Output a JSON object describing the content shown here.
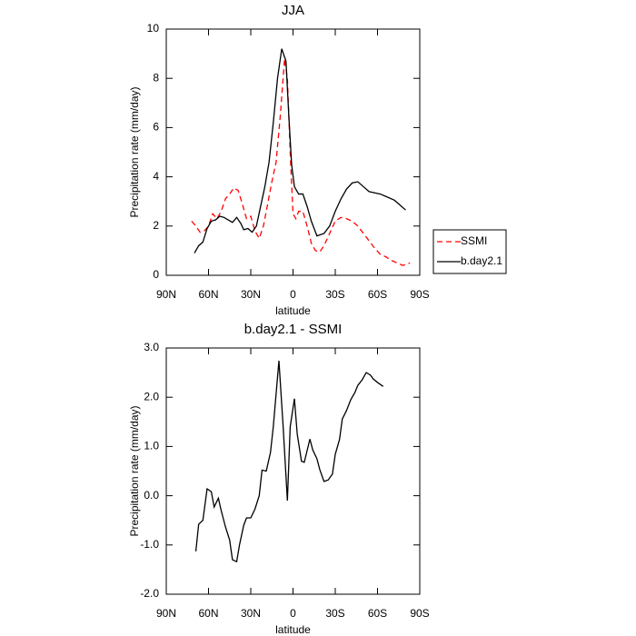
{
  "chart_data": [
    {
      "type": "line",
      "title": "JJA",
      "x_label": "latitude",
      "y_label": "Precipitation rate (mm/day)",
      "xlim": [
        90,
        -90
      ],
      "xticks": [
        {
          "value": 90,
          "label": "90N"
        },
        {
          "value": 60,
          "label": "60N"
        },
        {
          "value": 30,
          "label": "30N"
        },
        0,
        {
          "value": -30,
          "label": "30S"
        },
        {
          "value": -60,
          "label": "60S"
        },
        {
          "value": -90,
          "label": "90S"
        }
      ],
      "ylim": [
        0,
        10
      ],
      "yticks": [
        0,
        2,
        4,
        6,
        8,
        10
      ],
      "legend": "right",
      "series": [
        {
          "name": "SSMI",
          "color": "#ff0000",
          "line_style": "dashed",
          "x": [
            72,
            69,
            66,
            63,
            60,
            57,
            54,
            51,
            48,
            45,
            42,
            39,
            36,
            33,
            30,
            27,
            24,
            21,
            18,
            15,
            12,
            9,
            6,
            4,
            2,
            0,
            -2,
            -4,
            -7,
            -10,
            -13,
            -16,
            -19,
            -22,
            -26,
            -30,
            -34,
            -38,
            -42,
            -46,
            -50,
            -54,
            -58,
            -62,
            -66,
            -70,
            -74,
            -78,
            -83
          ],
          "values": [
            2.2,
            2.0,
            1.75,
            1.8,
            2.0,
            2.5,
            2.3,
            2.6,
            3.1,
            3.3,
            3.55,
            3.45,
            2.9,
            2.3,
            2.4,
            1.8,
            1.5,
            2.0,
            2.9,
            3.8,
            4.6,
            6.5,
            8.8,
            8.0,
            5.0,
            2.5,
            2.3,
            2.6,
            2.6,
            2.0,
            1.3,
            1.0,
            0.95,
            1.2,
            1.7,
            2.2,
            2.35,
            2.3,
            2.2,
            2.0,
            1.7,
            1.4,
            1.1,
            0.85,
            0.75,
            0.6,
            0.5,
            0.4,
            0.5
          ]
        },
        {
          "name": "b.day2.1",
          "color": "#000000",
          "line_style": "solid",
          "x": [
            70,
            67,
            64,
            61,
            58,
            55,
            52,
            49,
            46,
            43,
            40,
            37,
            35,
            32,
            29,
            26,
            23,
            20,
            17,
            14,
            11,
            8,
            5,
            3,
            1,
            -1,
            -4,
            -7,
            -10,
            -13,
            -17,
            -22,
            -26,
            -30,
            -34,
            -38,
            -42,
            -46,
            -50,
            -54,
            -58,
            -62,
            -66,
            -72,
            -76,
            -80
          ],
          "values": [
            0.9,
            1.2,
            1.35,
            1.9,
            2.2,
            2.25,
            2.4,
            2.35,
            2.25,
            2.15,
            2.35,
            2.1,
            1.85,
            1.9,
            1.75,
            2.0,
            2.8,
            3.6,
            4.6,
            6.2,
            8.0,
            9.2,
            8.7,
            6.5,
            4.5,
            3.6,
            3.3,
            3.3,
            2.8,
            2.2,
            1.6,
            1.7,
            2.0,
            2.6,
            3.1,
            3.5,
            3.75,
            3.8,
            3.6,
            3.4,
            3.35,
            3.3,
            3.2,
            3.05,
            2.85,
            2.65
          ]
        }
      ]
    },
    {
      "type": "line",
      "title": "b.day2.1 - SSMI",
      "x_label": "latitude",
      "y_label": "Precipitation rate (mm/day)",
      "xlim": [
        90,
        -90
      ],
      "xticks": [
        {
          "value": 90,
          "label": "90N"
        },
        {
          "value": 60,
          "label": "60N"
        },
        {
          "value": 30,
          "label": "30N"
        },
        0,
        {
          "value": -30,
          "label": "30S"
        },
        {
          "value": -60,
          "label": "60S"
        },
        {
          "value": -90,
          "label": "90S"
        }
      ],
      "ylim": [
        -2,
        3
      ],
      "yticks": [
        {
          "value": -2,
          "label": "-2.0"
        },
        {
          "value": -1,
          "label": "-1.0"
        },
        {
          "value": 0,
          "label": "0.0"
        },
        {
          "value": 1,
          "label": "1.0"
        },
        {
          "value": 2,
          "label": "2.0"
        },
        {
          "value": 3,
          "label": "3.0"
        }
      ],
      "color": "#000000",
      "x": [
        69,
        67,
        64,
        61,
        58,
        56,
        53,
        51,
        48,
        45,
        43,
        40,
        38,
        35,
        33,
        30,
        27,
        24,
        22,
        19,
        16,
        14,
        10,
        7,
        4,
        2,
        -1,
        -3,
        -6,
        -8,
        -12,
        -14,
        -17,
        -19,
        -22,
        -25,
        -28,
        -30,
        -33,
        -35,
        -38,
        -41,
        -44,
        -46,
        -49,
        -52,
        -55,
        -57,
        -60,
        -64
      ],
      "values": [
        -1.13,
        -0.58,
        -0.5,
        0.14,
        0.08,
        -0.23,
        -0.05,
        -0.3,
        -0.63,
        -0.9,
        -1.3,
        -1.34,
        -1.0,
        -0.6,
        -0.45,
        -0.45,
        -0.27,
        0.0,
        0.52,
        0.5,
        0.88,
        1.4,
        2.74,
        1.4,
        -0.1,
        1.4,
        1.97,
        1.25,
        0.7,
        0.68,
        1.15,
        0.93,
        0.75,
        0.53,
        0.29,
        0.32,
        0.44,
        0.84,
        1.14,
        1.56,
        1.73,
        1.95,
        2.1,
        2.24,
        2.35,
        2.5,
        2.45,
        2.37,
        2.3,
        2.22
      ]
    }
  ]
}
